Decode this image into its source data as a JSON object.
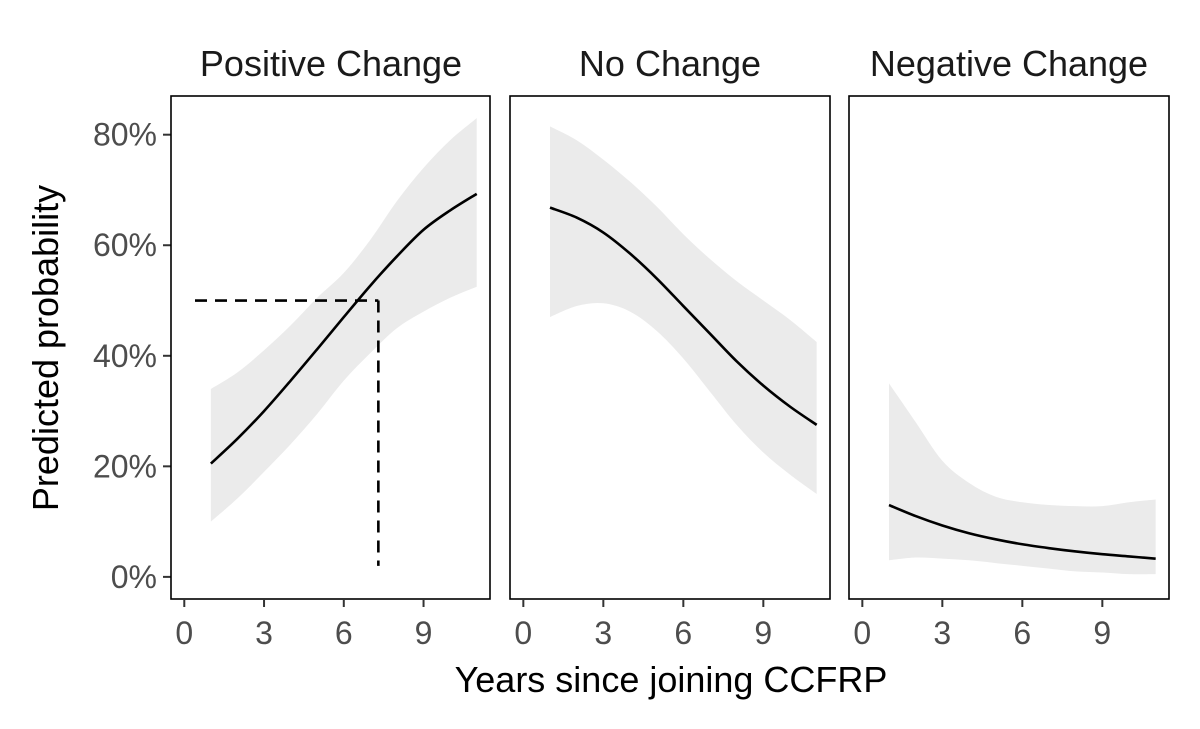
{
  "chart_data": {
    "type": "line",
    "layout": "facet-row",
    "xlabel": "Years since joining CCFRP",
    "ylabel": "Predicted probability",
    "xlim": [
      -0.5,
      11.5
    ],
    "ylim": [
      -4,
      87
    ],
    "x_ticks": [
      0,
      3,
      6,
      9
    ],
    "x_tick_labels": [
      "0",
      "3",
      "6",
      "9"
    ],
    "y_ticks": [
      0,
      20,
      40,
      60,
      80
    ],
    "y_tick_labels": [
      "0%",
      "20%",
      "40%",
      "60%",
      "80%"
    ],
    "colors": {
      "line": "#000000",
      "ribbon": "#ebebeb",
      "frame": "#000000"
    },
    "panels": [
      {
        "title": "Positive Change",
        "x": [
          1,
          2,
          3,
          4,
          5,
          6,
          7,
          8,
          9,
          10,
          11
        ],
        "fit": [
          20.5,
          25.0,
          30.0,
          35.5,
          41.2,
          47.0,
          52.7,
          58.0,
          62.8,
          66.3,
          69.3
        ],
        "lower": [
          10.0,
          14.2,
          19.0,
          24.0,
          29.5,
          35.5,
          40.5,
          45.0,
          48.0,
          50.5,
          52.5
        ],
        "upper": [
          34.0,
          37.0,
          41.0,
          45.5,
          50.5,
          55.0,
          61.0,
          68.0,
          74.0,
          79.0,
          83.0
        ],
        "reference": {
          "x": 7.3,
          "y": 50
        }
      },
      {
        "title": "No Change",
        "x": [
          1,
          2,
          3,
          4,
          5,
          6,
          7,
          8,
          9,
          10,
          11
        ],
        "fit": [
          66.8,
          65.0,
          62.3,
          58.5,
          54.0,
          49.0,
          44.0,
          39.0,
          34.6,
          30.8,
          27.5
        ],
        "lower": [
          47.0,
          49.0,
          49.5,
          48.0,
          44.5,
          39.5,
          33.5,
          27.5,
          22.5,
          18.5,
          15.0
        ],
        "upper": [
          81.5,
          79.0,
          75.5,
          71.5,
          67.0,
          62.0,
          57.5,
          53.5,
          50.0,
          46.5,
          42.5
        ]
      },
      {
        "title": "Negative Change",
        "x": [
          1,
          2,
          3,
          4,
          5,
          6,
          7,
          8,
          9,
          10,
          11
        ],
        "fit": [
          13.0,
          11.0,
          9.3,
          7.9,
          6.8,
          5.9,
          5.2,
          4.6,
          4.1,
          3.7,
          3.3
        ],
        "lower": [
          3.0,
          3.5,
          3.3,
          3.0,
          2.5,
          2.0,
          1.5,
          1.0,
          0.8,
          0.5,
          0.5
        ],
        "upper": [
          35.0,
          28.0,
          21.0,
          17.0,
          14.5,
          13.5,
          13.0,
          12.8,
          12.8,
          13.5,
          14.0
        ]
      }
    ]
  }
}
